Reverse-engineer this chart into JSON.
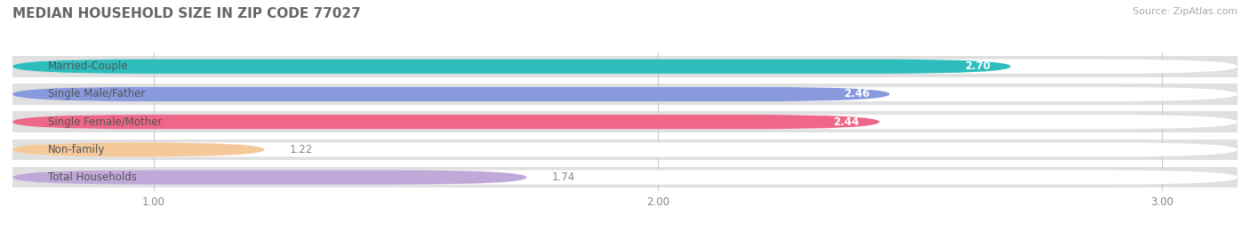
{
  "title": "MEDIAN HOUSEHOLD SIZE IN ZIP CODE 77027",
  "source": "Source: ZipAtlas.com",
  "categories": [
    "Married-Couple",
    "Single Male/Father",
    "Single Female/Mother",
    "Non-family",
    "Total Households"
  ],
  "values": [
    2.7,
    2.46,
    2.44,
    1.22,
    1.74
  ],
  "bar_colors": [
    "#2dbdbd",
    "#8899dd",
    "#ee6688",
    "#f5c89a",
    "#c0a8d8"
  ],
  "xmin": 0.72,
  "xmax": 3.15,
  "xticks": [
    1.0,
    2.0,
    3.0
  ],
  "background_color": "#ffffff",
  "bar_bg_color": "#f0f0f0",
  "sep_color": "#e0e0e0",
  "title_fontsize": 11,
  "label_fontsize": 8.5,
  "value_fontsize": 8.5,
  "source_fontsize": 8,
  "title_color": "#666666",
  "source_color": "#aaaaaa",
  "label_color": "#555555",
  "value_color_inside": "#ffffff",
  "value_color_outside": "#888888"
}
